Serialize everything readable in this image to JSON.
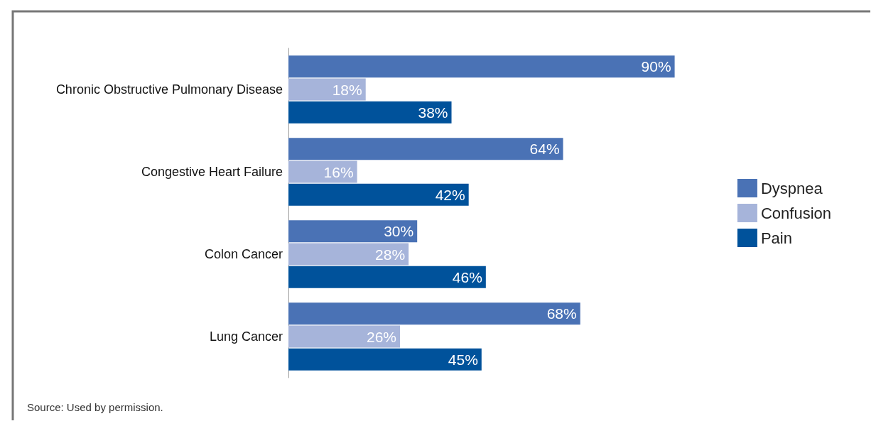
{
  "chart_data": {
    "type": "bar",
    "orientation": "horizontal",
    "legend": "right",
    "categories": [
      "Chronic Obstructive Pulmonary Disease",
      "Congestive Heart Failure",
      "Colon Cancer",
      "Lung Cancer"
    ],
    "series": [
      {
        "name": "Dyspnea",
        "color": "#4a72b5",
        "values": [
          90,
          64,
          30,
          68
        ],
        "value_labels": [
          "90%",
          "64%",
          "30%",
          "68%"
        ]
      },
      {
        "name": "Confusion",
        "color": "#a6b4da",
        "values": [
          18,
          16,
          28,
          26
        ],
        "value_labels": [
          "18%",
          "16%",
          "28%",
          "26%"
        ]
      },
      {
        "name": "Pain",
        "color": "#00529b",
        "values": [
          38,
          42,
          46,
          45
        ],
        "value_labels": [
          "38%",
          "42%",
          "46%",
          "45%"
        ]
      }
    ],
    "annotations": [
      "Source: Used by permission."
    ]
  }
}
